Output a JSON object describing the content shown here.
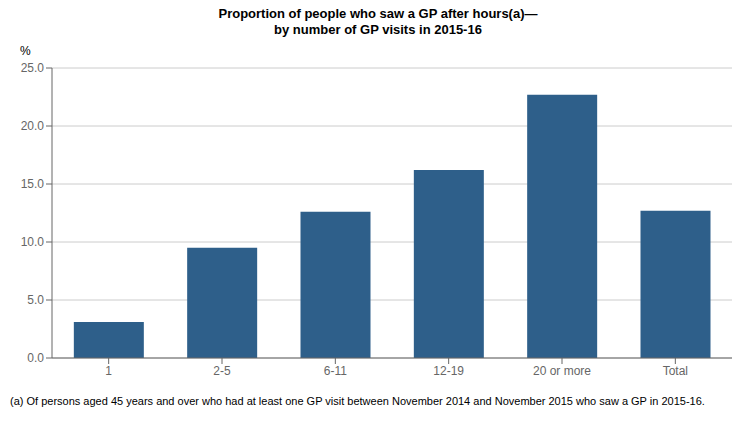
{
  "chart_data": {
    "type": "bar",
    "title": "Proportion of people who saw a GP after hours(a)—\nby number of GP visits in 2015-16",
    "ylabel": "%",
    "categories": [
      "1",
      "2-5",
      "6-11",
      "12-19",
      "20 or more",
      "Total"
    ],
    "values": [
      3.1,
      9.5,
      12.6,
      16.2,
      22.7,
      12.7
    ],
    "color": "#2e5f8a",
    "ylim": [
      0,
      25
    ],
    "yticks": [
      {
        "value": 0,
        "label": "0.0"
      },
      {
        "value": 5,
        "label": "5.0"
      },
      {
        "value": 10,
        "label": "10.0"
      },
      {
        "value": 15,
        "label": "15.0"
      },
      {
        "value": 20,
        "label": "20.0"
      },
      {
        "value": 25,
        "label": "25.0"
      }
    ],
    "grid": true,
    "footnote": "(a) Of persons aged 45 years and over who had at least one GP visit between November 2014 and November 2015 who saw a GP in 2015-16."
  }
}
